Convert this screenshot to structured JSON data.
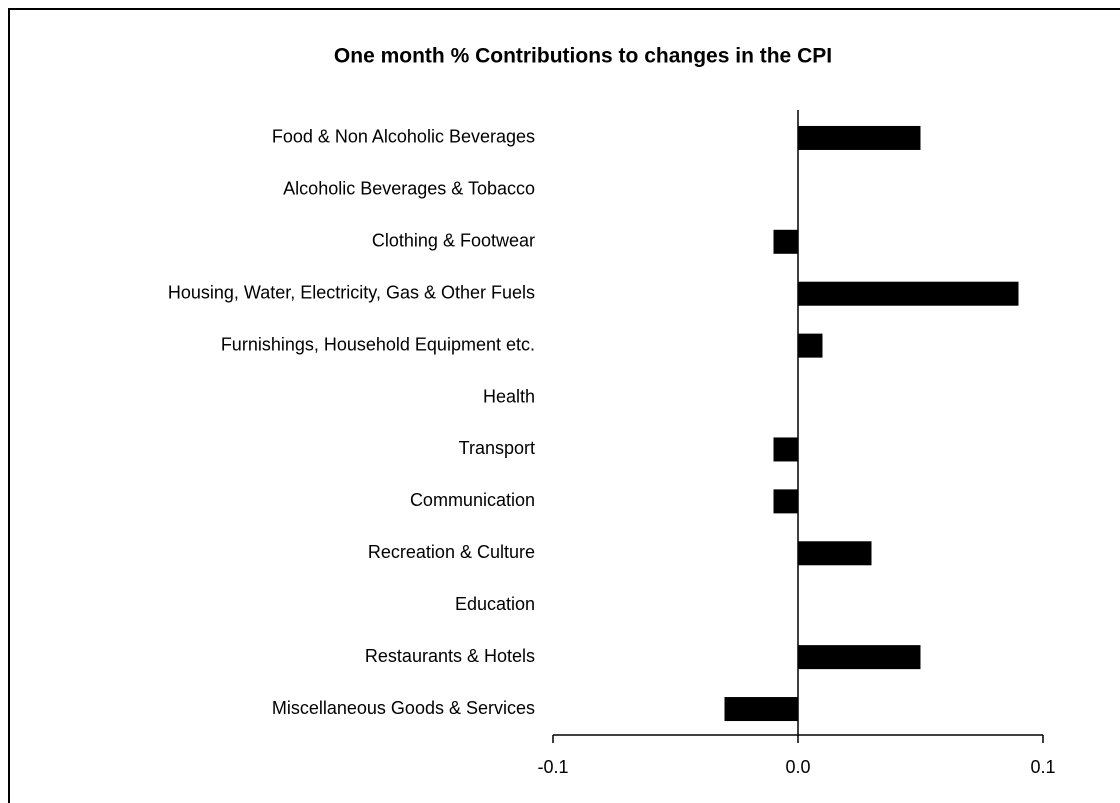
{
  "chart_data": {
    "type": "barh",
    "title": "One month % Contributions to changes in the CPI",
    "categories": [
      "Food & Non Alcoholic Beverages",
      "Alcoholic Beverages & Tobacco",
      "Clothing & Footwear",
      "Housing, Water, Electricity, Gas & Other Fuels",
      "Furnishings, Household Equipment etc.",
      "Health",
      "Transport",
      "Communication",
      "Recreation & Culture",
      "Education",
      "Restaurants & Hotels",
      "Miscellaneous Goods & Services"
    ],
    "values": [
      0.05,
      0,
      -0.01,
      0.09,
      0.01,
      0,
      -0.01,
      -0.01,
      0.03,
      0,
      0.05,
      -0.03
    ],
    "color": "#000000",
    "xlim": [
      -0.1,
      0.1
    ],
    "xticks": [
      -0.1,
      {
        "value": 0,
        "label": "0.0"
      },
      0.1
    ]
  }
}
